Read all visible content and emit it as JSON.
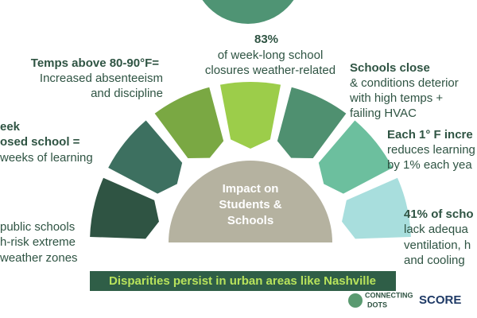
{
  "center": {
    "lines": [
      "Impact on",
      "Students &",
      "Schools"
    ]
  },
  "top": {
    "head": "83%",
    "lines": [
      "of week-long school",
      "closures weather-related"
    ]
  },
  "upper_left": {
    "head": "Temps above 80-90°F=",
    "lines": [
      "Increased absenteeism",
      "and discipline"
    ]
  },
  "upper_right": {
    "head": "Schools close",
    "lines": [
      "& conditions deterior",
      "with high temps +",
      "failing HVAC"
    ]
  },
  "mid_left": {
    "head": [
      "eek",
      "osed school ="
    ],
    "lines": [
      "weeks of learning"
    ]
  },
  "mid_right": {
    "head": "Each 1° F incre",
    "lines": [
      "reduces learning",
      "by 1% each yea"
    ]
  },
  "low_left": {
    "lines": [
      "public schools",
      "h-risk extreme",
      "weather zones"
    ]
  },
  "low_right": {
    "head": "41% of scho",
    "lines": [
      "lack adequa",
      "ventilation, h",
      "and cooling"
    ]
  },
  "banner": "Disparities persist in urban areas like Nashville",
  "logos": {
    "connecting": [
      "CONNECTING",
      "DOTS"
    ],
    "score": "SCORE"
  }
}
